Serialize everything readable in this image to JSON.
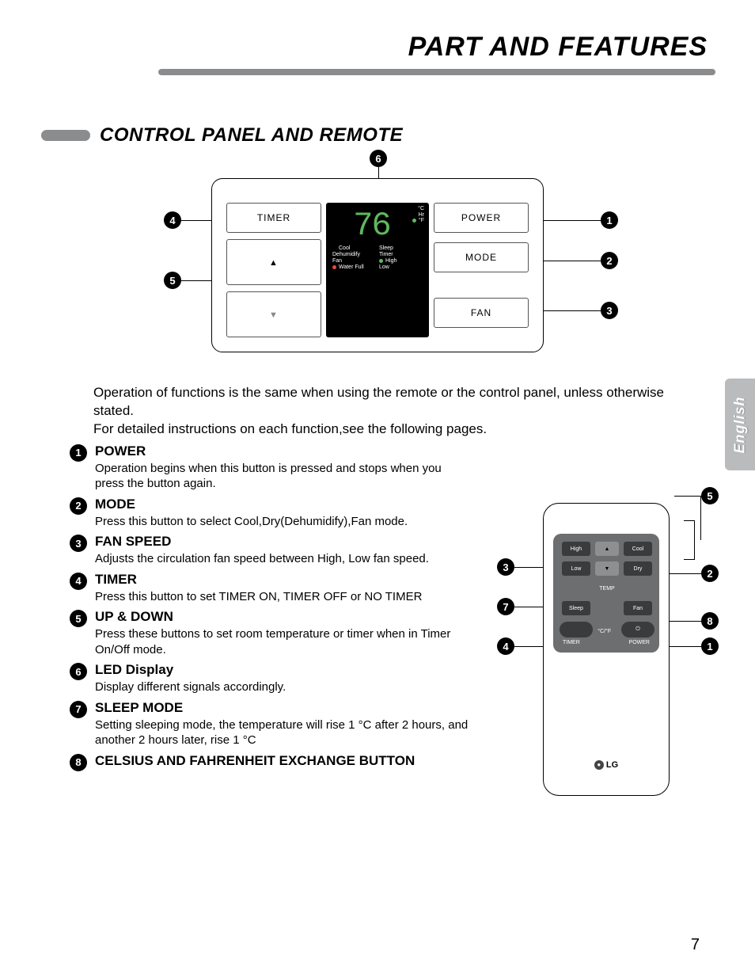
{
  "page_title": "PART AND FEATURES",
  "section_title": "CONTROL PANEL AND REMOTE",
  "side_tab": "English",
  "page_number": "7",
  "intro_line1": "Operation of functions is the same when using the remote or the control panel, unless otherwise stated.",
  "intro_line2": "For detailed instructions on each function,see the following pages.",
  "panel": {
    "timer_btn": "TIMER",
    "power_btn": "POWER",
    "mode_btn": "MODE",
    "fan_btn": "FAN",
    "display_value": "76",
    "unit_c": "°C",
    "unit_hr": "Hr",
    "unit_f": "°F",
    "labels": {
      "cool": "Cool",
      "sleep": "Sleep",
      "dehum": "Dehumidify",
      "timer": "Timer",
      "fan": "Fan",
      "high": "High",
      "water": "Water Full",
      "low": "Low"
    },
    "dot_colors": {
      "cool": "#5fb85f",
      "high": "#5fb85f",
      "water": "#e74c3c"
    }
  },
  "callouts": {
    "c1": "1",
    "c2": "2",
    "c3": "3",
    "c4": "4",
    "c5": "5",
    "c6": "6",
    "c7": "7",
    "c8": "8"
  },
  "features": [
    {
      "n": "1",
      "title": "POWER",
      "desc": "Operation begins when this button is pressed and stops when you press the button again."
    },
    {
      "n": "2",
      "title": "MODE",
      "desc": "Press this button to select Cool,Dry(Dehumidify),Fan mode."
    },
    {
      "n": "3",
      "title": "FAN SPEED",
      "desc": "Adjusts the circulation fan speed between High, Low  fan speed."
    },
    {
      "n": "4",
      "title": "TIMER",
      "desc": "Press this button to set TIMER ON, TIMER OFF or NO TIMER"
    },
    {
      "n": "5",
      "title": "UP & DOWN",
      "desc": "Press these buttons to set room temperature or timer when in Timer On/Off mode."
    },
    {
      "n": "6",
      "title": "LED Display",
      "desc": "Display different signals accordingly."
    },
    {
      "n": "7",
      "title": "SLEEP MODE",
      "desc": "Setting sleeping mode, the temperature will rise 1 °C after 2 hours, and another 2 hours later, rise 1 °C"
    },
    {
      "n": "8",
      "title": "CELSIUS AND FAHRENHEIT EXCHANGE BUTTON",
      "desc": ""
    }
  ],
  "remote": {
    "high": "High",
    "cool": "Cool",
    "low": "Low",
    "temp": "TEMP",
    "dry": "Dry",
    "sleep": "Sleep",
    "fan": "Fan",
    "cf": "°C/°F",
    "timer": "TIMER",
    "power": "POWER",
    "logo": "LG",
    "top_panel_bg": "#6d6e70",
    "btn_bg": "#3a3b3c"
  }
}
